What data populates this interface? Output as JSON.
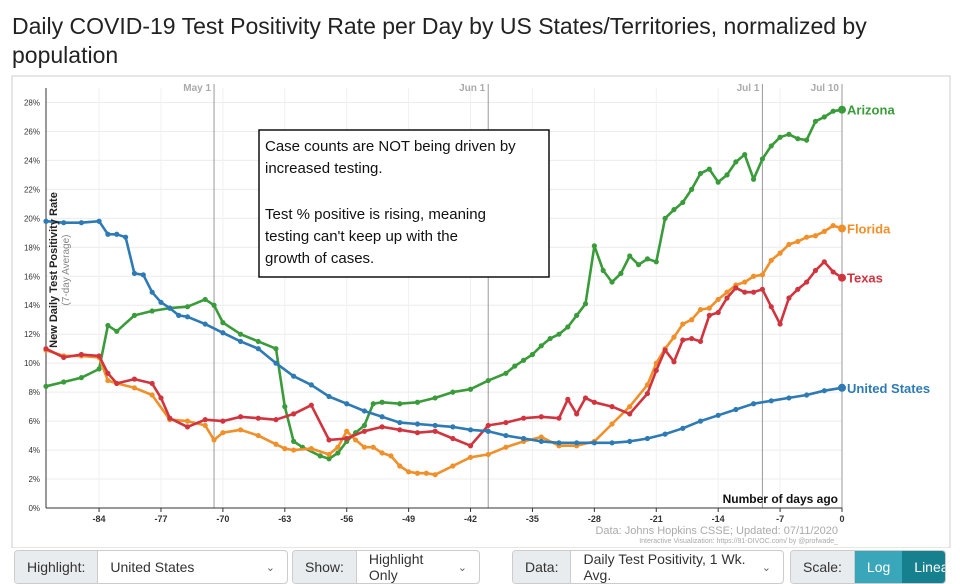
{
  "title": "Daily COVID-19 Test Positivity Rate per Day by US States/Territories, normalized by population",
  "annotation": {
    "line1": "Case counts are NOT being driven by",
    "line2": "increased testing.",
    "line3": "Test % positive is rising, meaning",
    "line4": "testing can't keep up with the",
    "line5": "growth of cases."
  },
  "chart_data": {
    "type": "line",
    "ylabel": "New Daily Test Positivity Rate",
    "ylabel_sub": "(7-day Average)",
    "xlabel": "Number of days ago",
    "xlim": [
      -90,
      0
    ],
    "ylim": [
      0,
      29
    ],
    "x_ticks": [
      -84,
      -77,
      -70,
      -63,
      -56,
      -49,
      -42,
      -35,
      -28,
      -21,
      -14,
      -7,
      0
    ],
    "x_tick_labels": [
      "-84",
      "-77",
      "-70",
      "-63",
      "-56",
      "-49",
      "-42",
      "-35",
      "-28",
      "-21",
      "-14",
      "-7",
      "0"
    ],
    "y_ticks": [
      0,
      2,
      4,
      6,
      8,
      10,
      12,
      14,
      16,
      18,
      20,
      22,
      24,
      26,
      28
    ],
    "y_tick_labels": [
      "0%",
      "2%",
      "4%",
      "6%",
      "8%",
      "10%",
      "12%",
      "14%",
      "16%",
      "18%",
      "20%",
      "22%",
      "24%",
      "26%",
      "28%"
    ],
    "date_markers": [
      {
        "x": -71,
        "label": "May 1"
      },
      {
        "x": -40,
        "label": "Jun 1"
      },
      {
        "x": -9,
        "label": "Jul 1"
      },
      {
        "x": 0,
        "label": "Jul 10"
      }
    ],
    "series": [
      {
        "name": "Arizona",
        "color": "#3a9b3a",
        "x": [
          -90,
          -88,
          -86,
          -84,
          -83,
          -82,
          -80,
          -78,
          -76,
          -74,
          -72,
          -71,
          -70,
          -68,
          -66,
          -64,
          -63,
          -62,
          -61,
          -59,
          -58,
          -57,
          -56,
          -55,
          -54,
          -53,
          -52,
          -50,
          -48,
          -46,
          -44,
          -42,
          -40,
          -38,
          -37,
          -36,
          -35,
          -34,
          -33,
          -32,
          -31,
          -30,
          -29,
          -28,
          -27,
          -26,
          -25,
          -24,
          -23,
          -22,
          -21,
          -20,
          -19,
          -18,
          -17,
          -16,
          -15,
          -14,
          -13,
          -12,
          -11,
          -10,
          -9,
          -8,
          -7,
          -6,
          -5,
          -4,
          -3,
          -2,
          -1,
          0
        ],
        "values": [
          8.4,
          8.7,
          9.0,
          9.6,
          12.6,
          12.2,
          13.3,
          13.6,
          13.8,
          13.9,
          14.4,
          14.0,
          12.8,
          12.0,
          11.5,
          11.0,
          7.0,
          4.6,
          4.2,
          3.6,
          3.4,
          3.8,
          4.6,
          5.2,
          5.7,
          7.2,
          7.3,
          7.2,
          7.3,
          7.6,
          8.0,
          8.2,
          8.8,
          9.3,
          9.8,
          10.2,
          10.6,
          11.2,
          11.7,
          12.0,
          12.5,
          13.3,
          14.1,
          18.1,
          16.4,
          15.6,
          16.2,
          17.4,
          16.8,
          17.2,
          17.0,
          20.0,
          20.6,
          21.1,
          22.0,
          23.1,
          23.4,
          22.5,
          23.0,
          23.9,
          24.4,
          22.7,
          24.1,
          25.0,
          25.6,
          25.8,
          25.5,
          25.4,
          26.7,
          27.0,
          27.4,
          27.5
        ]
      },
      {
        "name": "Florida",
        "color": "#f0902a",
        "x": [
          -90,
          -88,
          -86,
          -84,
          -83,
          -82,
          -80,
          -78,
          -76,
          -74,
          -72,
          -71,
          -70,
          -68,
          -66,
          -64,
          -63,
          -62,
          -60,
          -58,
          -57,
          -56,
          -55,
          -54,
          -53,
          -52,
          -51,
          -50,
          -49,
          -48,
          -47,
          -46,
          -44,
          -42,
          -40,
          -38,
          -36,
          -34,
          -32,
          -30,
          -28,
          -26,
          -24,
          -22,
          -21,
          -20,
          -19,
          -18,
          -17,
          -16,
          -15,
          -14,
          -13,
          -12,
          -11,
          -10,
          -9,
          -8,
          -7,
          -6,
          -5,
          -4,
          -3,
          -2,
          -1,
          0
        ],
        "values": [
          10.9,
          10.5,
          10.5,
          10.4,
          8.8,
          8.6,
          8.3,
          7.8,
          6.1,
          6.0,
          5.7,
          4.7,
          5.2,
          5.4,
          5.0,
          4.4,
          4.1,
          4.0,
          4.1,
          3.7,
          4.2,
          5.3,
          4.7,
          4.2,
          4.2,
          3.8,
          3.6,
          2.9,
          2.5,
          2.4,
          2.4,
          2.3,
          2.9,
          3.5,
          3.7,
          4.2,
          4.6,
          4.9,
          4.3,
          4.3,
          4.6,
          5.8,
          7.0,
          8.5,
          10.0,
          11.0,
          11.8,
          12.7,
          13.0,
          13.7,
          13.8,
          14.4,
          14.9,
          15.4,
          15.6,
          16.0,
          16.1,
          17.1,
          17.6,
          18.2,
          18.4,
          18.7,
          18.8,
          19.1,
          19.5,
          19.3
        ]
      },
      {
        "name": "Texas",
        "color": "#d0353f",
        "x": [
          -90,
          -88,
          -86,
          -84,
          -83,
          -82,
          -80,
          -78,
          -77,
          -76,
          -74,
          -72,
          -70,
          -68,
          -66,
          -64,
          -62,
          -60,
          -58,
          -56,
          -54,
          -52,
          -50,
          -48,
          -46,
          -44,
          -42,
          -40,
          -38,
          -36,
          -34,
          -32,
          -31,
          -30,
          -29,
          -28,
          -26,
          -24,
          -22,
          -21,
          -20,
          -19,
          -18,
          -17,
          -16,
          -15,
          -14,
          -13,
          -12,
          -11,
          -10,
          -9,
          -8,
          -7,
          -6,
          -5,
          -4,
          -3,
          -2,
          -1,
          0
        ],
        "values": [
          11.0,
          10.4,
          10.6,
          10.5,
          9.3,
          8.6,
          8.9,
          8.6,
          7.6,
          6.2,
          5.6,
          6.1,
          6.0,
          6.3,
          6.2,
          6.1,
          6.5,
          7.1,
          4.7,
          4.8,
          5.3,
          5.6,
          5.4,
          5.2,
          5.3,
          4.8,
          4.3,
          5.7,
          5.9,
          6.2,
          6.3,
          6.2,
          7.5,
          6.5,
          7.6,
          7.3,
          7.0,
          6.5,
          7.9,
          9.5,
          10.9,
          10.1,
          11.6,
          11.7,
          11.5,
          13.3,
          13.5,
          14.5,
          15.2,
          14.9,
          14.9,
          15.1,
          13.9,
          12.7,
          14.5,
          15.1,
          15.6,
          16.4,
          17.0,
          16.3,
          15.9
        ]
      },
      {
        "name": "United States",
        "color": "#2e7ab4",
        "x": [
          -90,
          -88,
          -86,
          -84,
          -83,
          -82,
          -81,
          -80,
          -79,
          -78,
          -77,
          -76,
          -75,
          -74,
          -72,
          -70,
          -68,
          -66,
          -64,
          -62,
          -60,
          -58,
          -56,
          -54,
          -52,
          -50,
          -48,
          -46,
          -44,
          -42,
          -40,
          -38,
          -36,
          -34,
          -32,
          -30,
          -28,
          -26,
          -24,
          -22,
          -20,
          -18,
          -16,
          -14,
          -12,
          -10,
          -8,
          -6,
          -4,
          -2,
          0
        ],
        "values": [
          19.8,
          19.7,
          19.7,
          19.8,
          18.9,
          18.9,
          18.7,
          16.2,
          16.1,
          14.9,
          14.2,
          13.8,
          13.3,
          13.2,
          12.7,
          12.1,
          11.5,
          11.0,
          10.0,
          9.1,
          8.5,
          7.7,
          7.2,
          6.7,
          6.3,
          5.9,
          5.8,
          5.7,
          5.6,
          5.4,
          5.3,
          5.0,
          4.8,
          4.6,
          4.5,
          4.5,
          4.5,
          4.5,
          4.6,
          4.8,
          5.1,
          5.5,
          6.0,
          6.4,
          6.8,
          7.2,
          7.4,
          7.6,
          7.8,
          8.1,
          8.3
        ]
      }
    ],
    "source": "Data: Johns Hopkins CSSE; Updated: 07/11/2020",
    "credit": "Interactive Visualization: https://91-DIVOC.com/ by @profwade_"
  },
  "controls": {
    "highlight_label": "Highlight:",
    "highlight_value": "United States",
    "show_label": "Show:",
    "show_value": "Highlight Only",
    "data_label": "Data:",
    "data_value": "Daily Test Positivity, 1 Wk. Avg.",
    "scale_label": "Scale:",
    "log_label": "Log",
    "linear_label": "Linear"
  }
}
